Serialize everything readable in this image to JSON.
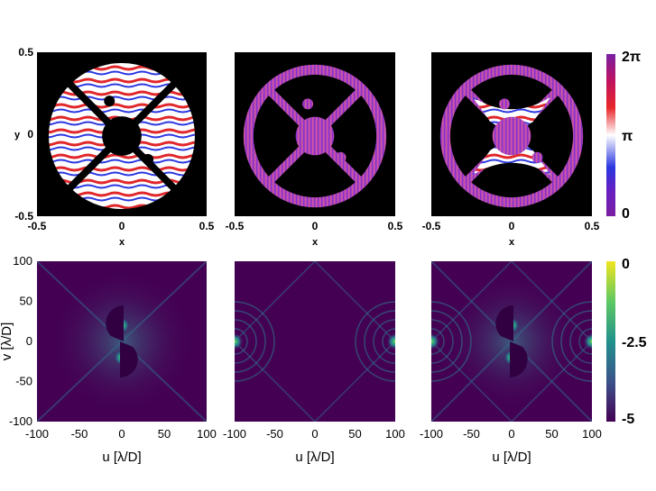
{
  "chart_data": [
    {
      "type": "heatmap",
      "description_free": true,
      "panels": [
        {
          "xlabel": "x",
          "ylabel": "y",
          "xlim": [
            -0.5,
            0.5
          ],
          "ylim": [
            -0.5,
            0.5
          ],
          "xticks": [
            "-0.5",
            "0",
            "0.5"
          ],
          "yticks": [
            "0.5",
            "0",
            "-0.5"
          ],
          "pattern": "horizontal-waves",
          "struts": "dark"
        },
        {
          "xlabel": "x",
          "ylabel": "",
          "xlim": [
            -0.5,
            0.5
          ],
          "ylim": [
            -0.5,
            0.5
          ],
          "xticks": [
            "-0.5",
            "0",
            "0.5"
          ],
          "yticks": [],
          "pattern": "vertical-stripes",
          "struts": "open"
        },
        {
          "xlabel": "x",
          "ylabel": "",
          "xlim": [
            -0.5,
            0.5
          ],
          "ylim": [
            -0.5,
            0.5
          ],
          "xticks": [
            "-0.5",
            "0",
            "0.5"
          ],
          "yticks": [],
          "pattern": "mixed",
          "struts": "open"
        }
      ],
      "colorbar": {
        "ticks": [
          "2π",
          "π",
          "0"
        ],
        "colors": [
          "#7a1fa2",
          "#c0135e",
          "#e8262a",
          "#ffffff",
          "#2a36e0",
          "#6a1fc0",
          "#7a1fa2"
        ]
      }
    },
    {
      "type": "heatmap",
      "panels": [
        {
          "xlabel": "u [λ/D]",
          "ylabel": "v [λ/D]",
          "xlim": [
            -100,
            100
          ],
          "ylim": [
            -100,
            100
          ],
          "xticks": [
            "-100",
            "-50",
            "0",
            "50",
            "100"
          ],
          "yticks": [
            "100",
            "50",
            "0",
            "-50",
            "-100"
          ],
          "peaks": [
            [
              0,
              20
            ],
            [
              0,
              -20
            ]
          ]
        },
        {
          "xlabel": "u [λ/D]",
          "ylabel": "",
          "xlim": [
            -100,
            100
          ],
          "ylim": [
            -100,
            100
          ],
          "xticks": [
            "-100",
            "-50",
            "0",
            "50",
            "100"
          ],
          "yticks": [],
          "peaks": [
            [
              -100,
              0
            ],
            [
              100,
              0
            ]
          ]
        },
        {
          "xlabel": "u [λ/D]",
          "ylabel": "",
          "xlim": [
            -100,
            100
          ],
          "ylim": [
            -100,
            100
          ],
          "xticks": [
            "-100",
            "-50",
            "0",
            "50",
            "100"
          ],
          "yticks": [],
          "peaks": [
            [
              0,
              20
            ],
            [
              0,
              -20
            ],
            [
              -100,
              0
            ],
            [
              100,
              0
            ]
          ]
        }
      ],
      "colorbar": {
        "ticks": [
          "0",
          "-2.5",
          "-5"
        ],
        "colors": [
          "#f0e51f",
          "#5ec962",
          "#21918c",
          "#3b528b",
          "#440154"
        ]
      }
    }
  ]
}
